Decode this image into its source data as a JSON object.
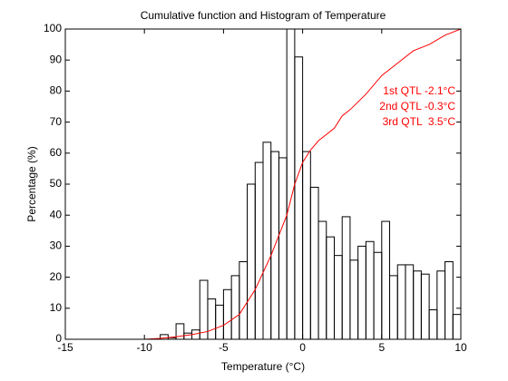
{
  "chart_data": {
    "type": "histogram",
    "title": "Cumulative function and Histogram of Temperature",
    "x_label": "Temperature (°C)",
    "y_label": "Percentage (%)",
    "xlim": [
      -15,
      10
    ],
    "ylim": [
      0,
      100
    ],
    "xticks": [
      -15,
      -10,
      -5,
      0,
      5,
      10
    ],
    "yticks": [
      0,
      10,
      20,
      30,
      40,
      50,
      60,
      70,
      80,
      90,
      100
    ],
    "color": "#000000",
    "bins": [
      -9,
      -8.5,
      -8,
      -7.5,
      -7,
      -6.5,
      -6,
      -5.5,
      -5,
      -4.5,
      -4,
      -3.5,
      -3,
      -2.5,
      -2,
      -1.5,
      -1,
      -0.5,
      0,
      0.5,
      1,
      1.5,
      2,
      2.5,
      3,
      3.5,
      4,
      4.5,
      5,
      5.5,
      6,
      6.5,
      7,
      7.5,
      8,
      8.5,
      9,
      9.5,
      10
    ],
    "counts": [
      1.5,
      0.5,
      5,
      2,
      3,
      19,
      13,
      11,
      16,
      20.5,
      25,
      50,
      57,
      63.5,
      60.5,
      58.5,
      105,
      91,
      60.5,
      49,
      38,
      33,
      27,
      39.5,
      25.5,
      30,
      31.5,
      28,
      38,
      20.5,
      24,
      24,
      22,
      21,
      9.5,
      22,
      25,
      8
    ],
    "overlay": {
      "type": "line",
      "color": "#ff0000",
      "x": [
        -15,
        -10,
        -9,
        -8,
        -7,
        -6,
        -5,
        -4,
        -3,
        -2,
        -1,
        -0.5,
        0,
        0.5,
        1,
        2,
        2.5,
        3,
        4,
        5,
        6,
        7,
        8,
        9,
        10
      ],
      "values": [
        0,
        0,
        0.3,
        0.8,
        1.5,
        2.5,
        4.5,
        8,
        16,
        27,
        40,
        50,
        57,
        61,
        64,
        68,
        72,
        74,
        79,
        85,
        89,
        93,
        95,
        98,
        100
      ]
    },
    "annotations": [
      "1st QTL -2.1°C",
      "2nd QTL -0.3°C",
      "3rd QTL  3.5°C"
    ],
    "annotation_color": "#ff0000"
  }
}
